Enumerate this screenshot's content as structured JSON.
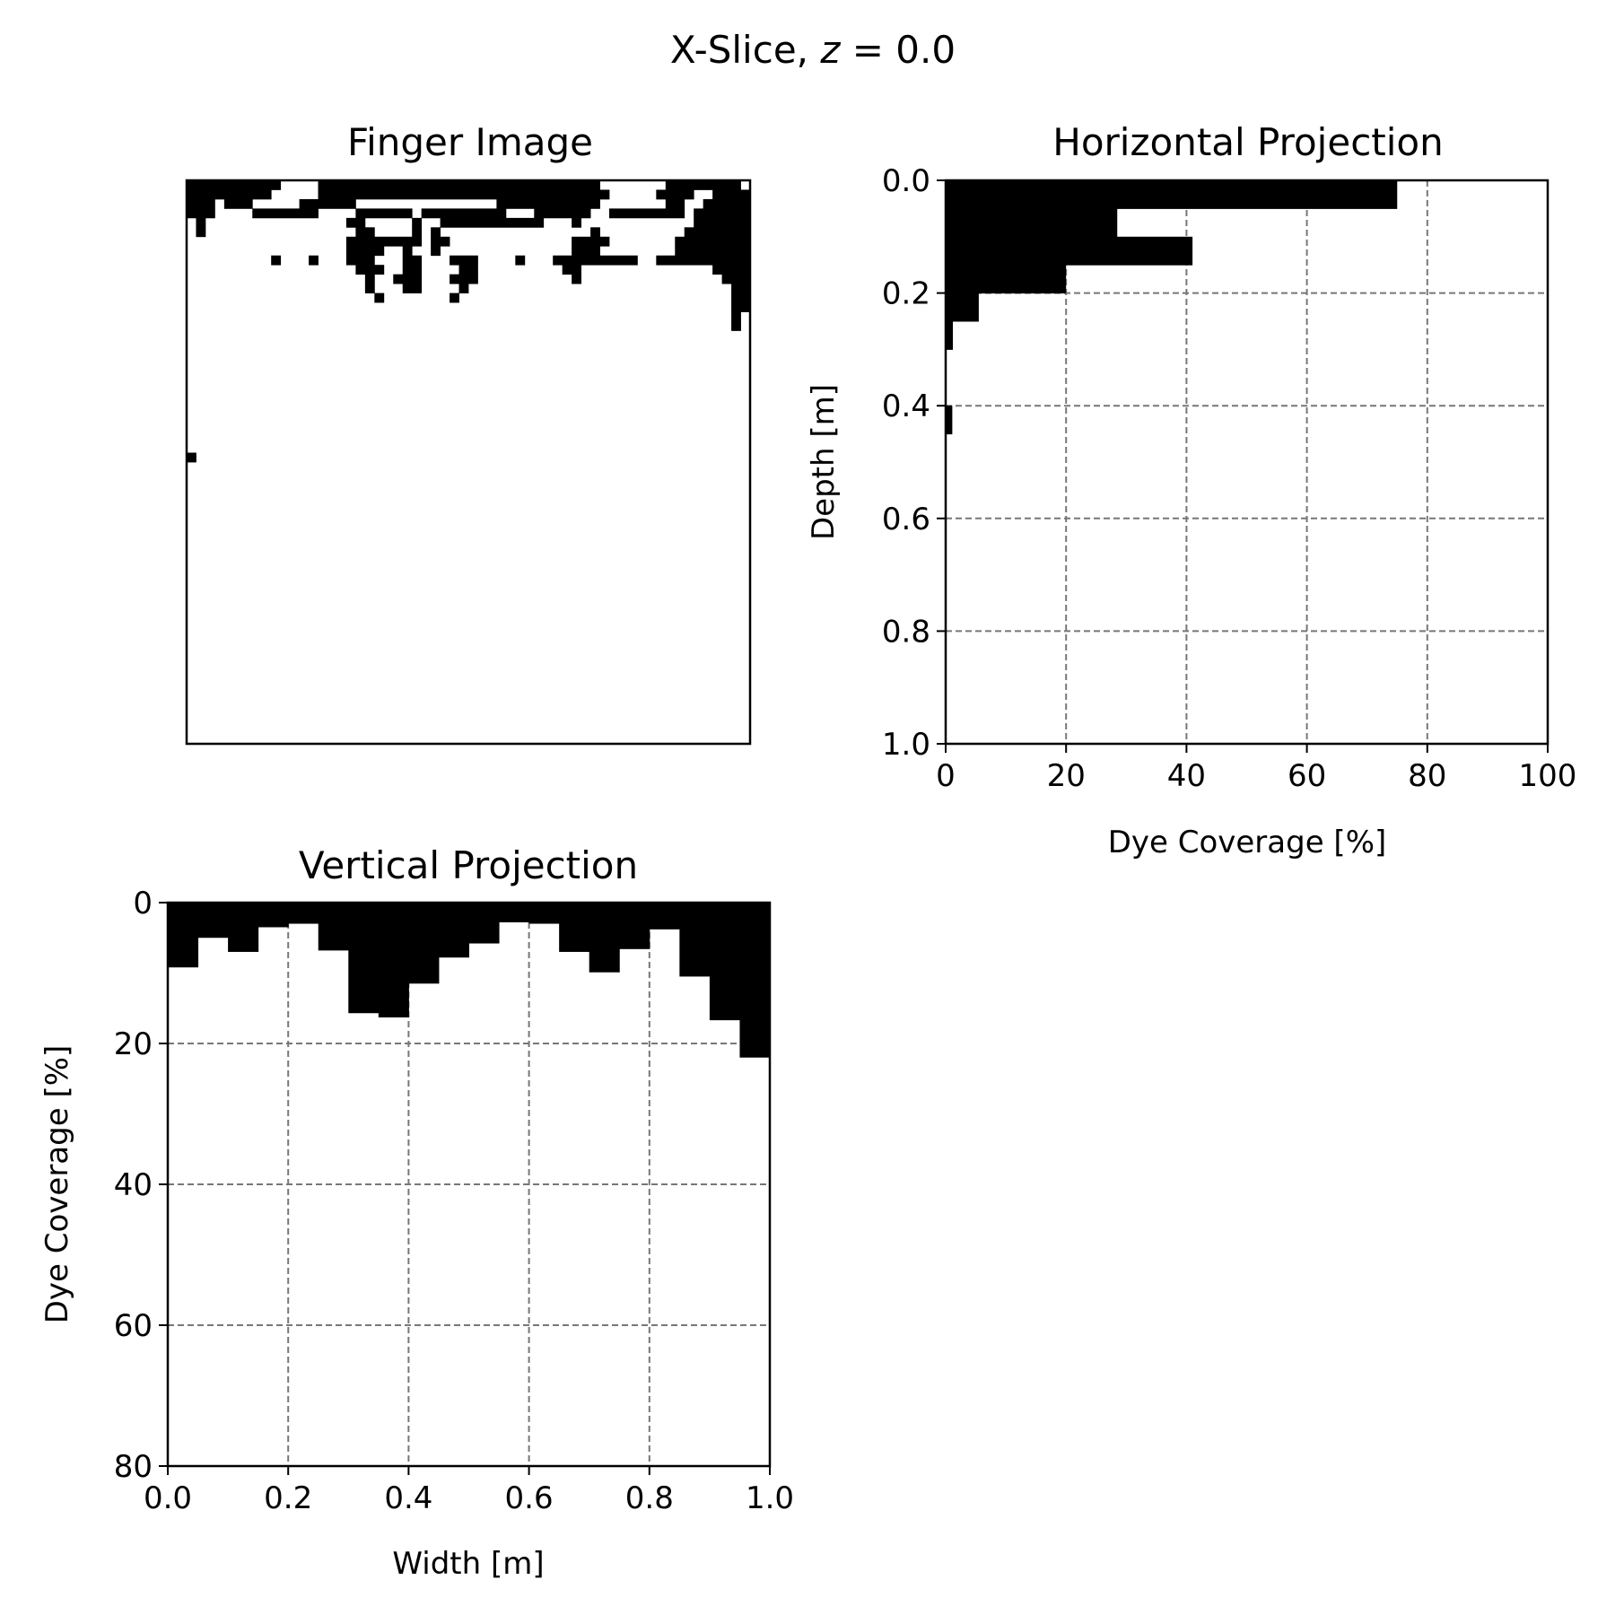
{
  "figure": {
    "suptitle_prefix": "X-Slice, ",
    "suptitle_var": "z",
    "suptitle_suffix": " = 0.0"
  },
  "chart_data": [
    {
      "type": "heatmap",
      "title": "Finger Image",
      "colors": {
        "dye": "#000000",
        "background": "#ffffff"
      },
      "axes_visible": false,
      "description_of_values": "binary dye mask, rows = depth cells (top to bottom), cols = width cells (left to right)",
      "grid_cols": 60,
      "grid_rows": 60,
      "runs": [
        [
          0,
          0,
          10
        ],
        [
          0,
          14,
          41
        ],
        [
          0,
          39,
          44
        ],
        [
          0,
          51,
          59
        ],
        [
          1,
          0,
          9
        ],
        [
          1,
          14,
          40
        ],
        [
          1,
          37,
          45
        ],
        [
          1,
          50,
          54
        ],
        [
          1,
          56,
          60
        ],
        [
          2,
          0,
          3
        ],
        [
          2,
          4,
          7
        ],
        [
          2,
          12,
          18
        ],
        [
          2,
          33,
          44
        ],
        [
          2,
          51,
          53
        ],
        [
          2,
          55,
          60
        ],
        [
          3,
          0,
          3
        ],
        [
          3,
          7,
          14
        ],
        [
          3,
          18,
          24
        ],
        [
          3,
          25,
          34
        ],
        [
          3,
          37,
          43
        ],
        [
          3,
          45,
          53
        ],
        [
          3,
          54,
          60
        ],
        [
          4,
          1,
          2
        ],
        [
          4,
          17,
          19
        ],
        [
          4,
          24,
          25
        ],
        [
          4,
          27,
          38
        ],
        [
          4,
          41,
          42
        ],
        [
          4,
          54,
          60
        ],
        [
          5,
          1,
          2
        ],
        [
          5,
          18,
          20
        ],
        [
          5,
          24,
          25
        ],
        [
          5,
          26,
          27
        ],
        [
          5,
          43,
          44
        ],
        [
          5,
          53,
          60
        ],
        [
          6,
          17,
          25
        ],
        [
          6,
          26,
          28
        ],
        [
          6,
          41,
          45
        ],
        [
          6,
          52,
          60
        ],
        [
          7,
          17,
          21
        ],
        [
          7,
          23,
          24
        ],
        [
          7,
          26,
          27
        ],
        [
          7,
          41,
          44
        ],
        [
          7,
          52,
          60
        ],
        [
          8,
          9,
          10
        ],
        [
          8,
          13,
          14
        ],
        [
          8,
          17,
          20
        ],
        [
          8,
          23,
          25
        ],
        [
          8,
          28,
          31
        ],
        [
          8,
          35,
          36
        ],
        [
          8,
          39,
          48
        ],
        [
          8,
          50,
          60
        ],
        [
          9,
          18,
          21
        ],
        [
          9,
          23,
          25
        ],
        [
          9,
          29,
          31
        ],
        [
          9,
          40,
          42
        ],
        [
          9,
          56,
          60
        ],
        [
          10,
          19,
          20
        ],
        [
          10,
          22,
          25
        ],
        [
          10,
          28,
          31
        ],
        [
          10,
          41,
          42
        ],
        [
          10,
          57,
          60
        ],
        [
          11,
          19,
          20
        ],
        [
          11,
          23,
          25
        ],
        [
          11,
          29,
          30
        ],
        [
          11,
          58,
          60
        ],
        [
          12,
          20,
          21
        ],
        [
          12,
          28,
          29
        ],
        [
          12,
          58,
          60
        ],
        [
          13,
          58,
          60
        ],
        [
          14,
          58,
          59
        ],
        [
          15,
          58,
          59
        ],
        [
          29,
          0,
          1
        ]
      ]
    },
    {
      "type": "bar",
      "orientation": "horizontal",
      "title": "Horizontal Projection",
      "xlabel": "Dye Coverage [%]",
      "ylabel": "Depth [m]",
      "xlim": [
        0,
        100
      ],
      "ylim": [
        1.0,
        0.0
      ],
      "y_inverted": true,
      "grid": true,
      "xticks": [
        "0",
        "20",
        "40",
        "60",
        "80",
        "100"
      ],
      "yticks": [
        "0.0",
        "0.2",
        "0.4",
        "0.6",
        "0.8",
        "1.0"
      ],
      "color": "#000000",
      "depth_top": [
        0,
        0.05,
        0.1,
        0.15,
        0.2,
        0.25,
        0.3,
        0.35,
        0.4,
        0.45,
        0.5,
        0.55,
        0.6,
        0.65,
        0.7,
        0.75,
        0.8,
        0.85,
        0.9,
        0.95
      ],
      "depth_bottom": [
        0.05,
        0.1,
        0.15,
        0.2,
        0.25,
        0.3,
        0.35,
        0.4,
        0.45,
        0.5,
        0.55,
        0.6,
        0.65,
        0.7,
        0.75,
        0.8,
        0.85,
        0.9,
        0.95,
        1.0
      ],
      "values": [
        75,
        28.5,
        41,
        20,
        5.5,
        1.2,
        0,
        0,
        1.1,
        0,
        0,
        0,
        0,
        0,
        0,
        0,
        0,
        0,
        0,
        0
      ]
    },
    {
      "type": "bar",
      "orientation": "vertical",
      "title": "Vertical Projection",
      "xlabel": "Width [m]",
      "ylabel": "Dye Coverage [%]",
      "xlim": [
        0.0,
        1.0
      ],
      "ylim": [
        80,
        0
      ],
      "y_inverted": true,
      "grid": true,
      "xticks": [
        "0.0",
        "0.2",
        "0.4",
        "0.6",
        "0.8",
        "1.0"
      ],
      "yticks": [
        "0",
        "20",
        "40",
        "60",
        "80"
      ],
      "color": "#000000",
      "x_left": [
        0.0,
        0.05,
        0.1,
        0.15,
        0.2,
        0.25,
        0.3,
        0.35,
        0.4,
        0.45,
        0.5,
        0.55,
        0.6,
        0.65,
        0.7,
        0.75,
        0.8,
        0.85,
        0.9,
        0.95
      ],
      "x_right": [
        0.05,
        0.1,
        0.15,
        0.2,
        0.25,
        0.3,
        0.35,
        0.4,
        0.45,
        0.5,
        0.55,
        0.6,
        0.65,
        0.7,
        0.75,
        0.8,
        0.85,
        0.9,
        0.95,
        1.0
      ],
      "values": [
        9.2,
        5,
        7,
        3.5,
        3,
        6.8,
        15.7,
        16.3,
        11.5,
        7.8,
        5.8,
        2.8,
        3,
        7,
        9.9,
        6.6,
        3.8,
        10.5,
        16.7,
        22
      ]
    }
  ]
}
